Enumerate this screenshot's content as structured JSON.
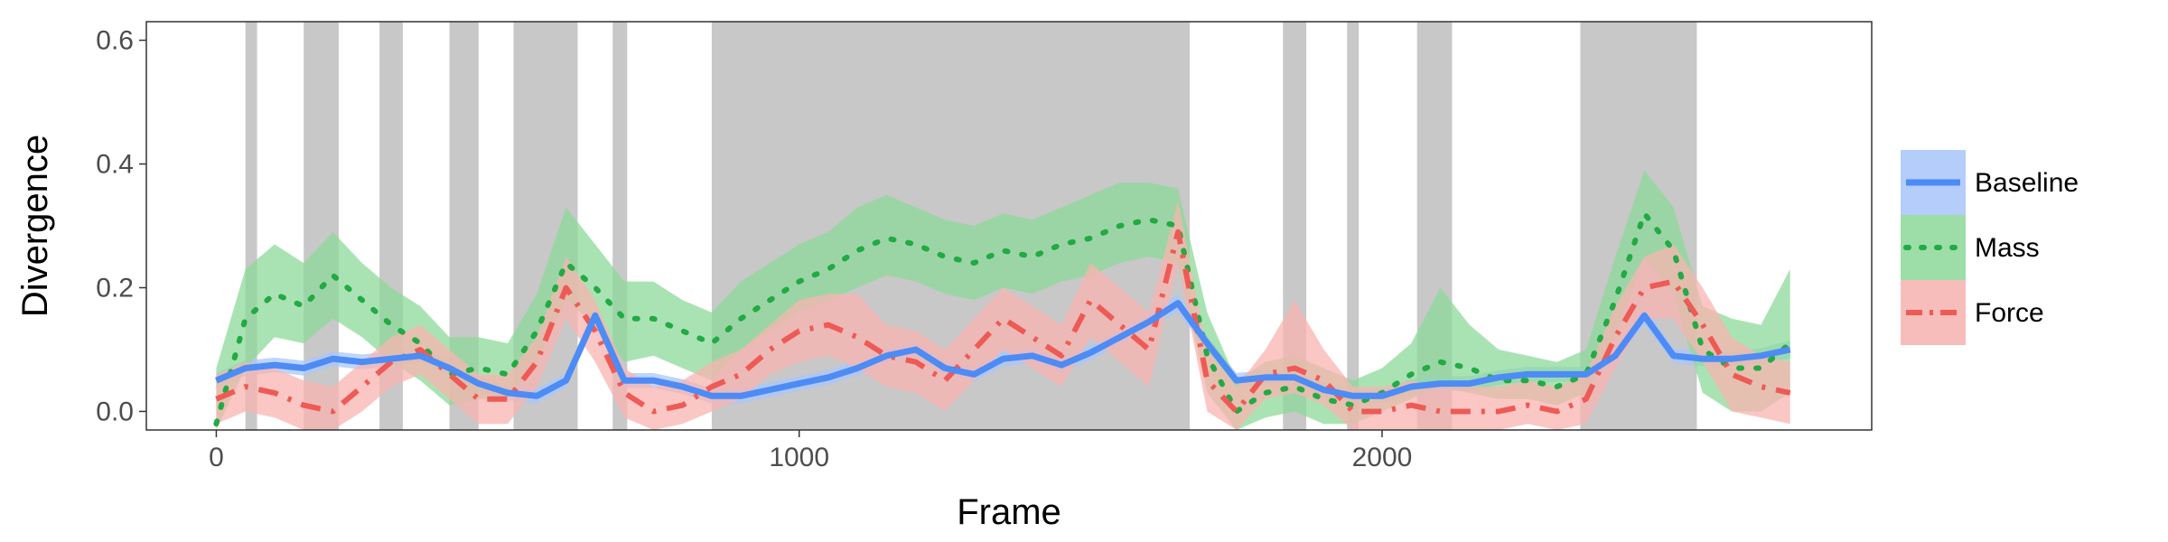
{
  "chart_data": {
    "type": "line",
    "xlabel": "Frame",
    "ylabel": "Divergence",
    "xlim": [
      -120,
      2840
    ],
    "ylim": [
      -0.03,
      0.63
    ],
    "xticks": [
      0,
      1000,
      2000
    ],
    "yticks": [
      0.0,
      0.2,
      0.4,
      0.6
    ],
    "xtick_labels": [
      "0",
      "1000",
      "2000"
    ],
    "ytick_labels": [
      "0.0",
      "0.2",
      "0.4",
      "0.6"
    ],
    "grid": false,
    "legend_position": "right",
    "shaded_regions": [
      [
        50,
        70
      ],
      [
        150,
        210
      ],
      [
        280,
        320
      ],
      [
        400,
        450
      ],
      [
        510,
        620
      ],
      [
        680,
        705
      ],
      [
        850,
        1670
      ],
      [
        1830,
        1870
      ],
      [
        1940,
        1960
      ],
      [
        2060,
        2120
      ],
      [
        2340,
        2540
      ]
    ],
    "series": [
      {
        "name": "Baseline",
        "color": "#4d8bf5",
        "band_color": "#a9c7fb",
        "linestyle": "solid",
        "x": [
          0,
          50,
          100,
          150,
          200,
          250,
          300,
          350,
          400,
          450,
          500,
          550,
          600,
          650,
          700,
          750,
          800,
          850,
          900,
          950,
          1000,
          1050,
          1100,
          1150,
          1200,
          1250,
          1300,
          1350,
          1400,
          1450,
          1500,
          1550,
          1600,
          1650,
          1700,
          1750,
          1800,
          1850,
          1900,
          1950,
          2000,
          2050,
          2100,
          2150,
          2200,
          2250,
          2300,
          2350,
          2400,
          2450,
          2500,
          2550,
          2600,
          2650,
          2700
        ],
        "y": [
          0.05,
          0.07,
          0.075,
          0.07,
          0.085,
          0.08,
          0.085,
          0.09,
          0.07,
          0.045,
          0.03,
          0.025,
          0.05,
          0.155,
          0.05,
          0.05,
          0.04,
          0.025,
          0.025,
          0.035,
          0.045,
          0.055,
          0.07,
          0.09,
          0.1,
          0.07,
          0.06,
          0.085,
          0.09,
          0.075,
          0.095,
          0.12,
          0.145,
          0.175,
          0.11,
          0.05,
          0.055,
          0.055,
          0.035,
          0.025,
          0.025,
          0.04,
          0.045,
          0.045,
          0.055,
          0.06,
          0.06,
          0.06,
          0.09,
          0.155,
          0.09,
          0.085,
          0.085,
          0.09,
          0.1
        ],
        "lower": [
          0.038,
          0.058,
          0.063,
          0.058,
          0.073,
          0.068,
          0.073,
          0.078,
          0.058,
          0.033,
          0.018,
          0.013,
          0.038,
          0.14,
          0.038,
          0.038,
          0.028,
          0.013,
          0.013,
          0.023,
          0.033,
          0.043,
          0.058,
          0.078,
          0.088,
          0.058,
          0.048,
          0.073,
          0.078,
          0.063,
          0.083,
          0.108,
          0.133,
          0.16,
          0.098,
          0.038,
          0.043,
          0.043,
          0.023,
          0.013,
          0.013,
          0.028,
          0.033,
          0.033,
          0.043,
          0.048,
          0.048,
          0.048,
          0.078,
          0.14,
          0.078,
          0.073,
          0.073,
          0.078,
          0.085
        ],
        "upper": [
          0.062,
          0.082,
          0.087,
          0.082,
          0.097,
          0.092,
          0.097,
          0.102,
          0.082,
          0.057,
          0.042,
          0.037,
          0.062,
          0.17,
          0.062,
          0.062,
          0.052,
          0.037,
          0.037,
          0.047,
          0.057,
          0.067,
          0.082,
          0.102,
          0.112,
          0.082,
          0.072,
          0.097,
          0.102,
          0.087,
          0.107,
          0.132,
          0.157,
          0.19,
          0.122,
          0.062,
          0.067,
          0.067,
          0.047,
          0.037,
          0.037,
          0.052,
          0.057,
          0.057,
          0.067,
          0.072,
          0.072,
          0.072,
          0.102,
          0.17,
          0.102,
          0.097,
          0.097,
          0.102,
          0.115
        ]
      },
      {
        "name": "Mass",
        "color": "#22aa44",
        "band_color": "#8ed99a",
        "linestyle": "dotted",
        "x": [
          0,
          50,
          100,
          150,
          200,
          250,
          300,
          350,
          400,
          450,
          500,
          550,
          600,
          650,
          700,
          750,
          800,
          850,
          900,
          950,
          1000,
          1050,
          1100,
          1150,
          1200,
          1250,
          1300,
          1350,
          1400,
          1450,
          1500,
          1550,
          1600,
          1650,
          1700,
          1750,
          1800,
          1850,
          1900,
          1950,
          2000,
          2050,
          2100,
          2150,
          2200,
          2250,
          2300,
          2350,
          2400,
          2450,
          2500,
          2550,
          2600,
          2650,
          2700
        ],
        "y": [
          -0.02,
          0.15,
          0.19,
          0.17,
          0.22,
          0.18,
          0.14,
          0.11,
          0.06,
          0.07,
          0.06,
          0.13,
          0.24,
          0.2,
          0.15,
          0.15,
          0.13,
          0.11,
          0.15,
          0.18,
          0.21,
          0.23,
          0.26,
          0.28,
          0.27,
          0.25,
          0.24,
          0.26,
          0.25,
          0.27,
          0.28,
          0.3,
          0.31,
          0.3,
          0.09,
          0.0,
          0.03,
          0.04,
          0.02,
          0.01,
          0.03,
          0.06,
          0.08,
          0.07,
          0.05,
          0.05,
          0.04,
          0.06,
          0.18,
          0.32,
          0.26,
          0.1,
          0.07,
          0.07,
          0.11
        ],
        "lower": [
          -0.03,
          0.07,
          0.12,
          0.11,
          0.15,
          0.12,
          0.08,
          0.05,
          0.01,
          0.02,
          0.02,
          0.08,
          0.18,
          0.14,
          0.08,
          0.09,
          0.07,
          0.05,
          0.1,
          0.13,
          0.16,
          0.18,
          0.2,
          0.22,
          0.21,
          0.19,
          0.18,
          0.2,
          0.19,
          0.21,
          0.22,
          0.24,
          0.25,
          0.24,
          0.03,
          -0.03,
          -0.01,
          0.0,
          -0.02,
          -0.02,
          0.0,
          0.02,
          0.04,
          0.03,
          0.02,
          0.02,
          0.01,
          0.03,
          0.12,
          0.25,
          0.19,
          0.03,
          0.0,
          0.0,
          0.03
        ],
        "upper": [
          0.07,
          0.23,
          0.27,
          0.24,
          0.29,
          0.24,
          0.2,
          0.17,
          0.12,
          0.12,
          0.11,
          0.19,
          0.33,
          0.27,
          0.21,
          0.21,
          0.18,
          0.16,
          0.21,
          0.24,
          0.27,
          0.29,
          0.33,
          0.35,
          0.33,
          0.31,
          0.3,
          0.32,
          0.31,
          0.33,
          0.35,
          0.37,
          0.37,
          0.36,
          0.16,
          0.05,
          0.08,
          0.09,
          0.07,
          0.05,
          0.07,
          0.11,
          0.2,
          0.14,
          0.1,
          0.09,
          0.08,
          0.1,
          0.25,
          0.39,
          0.33,
          0.17,
          0.15,
          0.14,
          0.23
        ]
      },
      {
        "name": "Force",
        "color": "#ee5a55",
        "band_color": "#f8b4b0",
        "linestyle": "dashdot",
        "x": [
          0,
          50,
          100,
          150,
          200,
          250,
          300,
          350,
          400,
          450,
          500,
          550,
          600,
          650,
          700,
          750,
          800,
          850,
          900,
          950,
          1000,
          1050,
          1100,
          1150,
          1200,
          1250,
          1300,
          1350,
          1400,
          1450,
          1500,
          1550,
          1600,
          1650,
          1700,
          1750,
          1800,
          1850,
          1900,
          1950,
          2000,
          2050,
          2100,
          2150,
          2200,
          2250,
          2300,
          2350,
          2400,
          2450,
          2500,
          2550,
          2600,
          2650,
          2700
        ],
        "y": [
          0.02,
          0.04,
          0.03,
          0.01,
          0.0,
          0.04,
          0.08,
          0.1,
          0.06,
          0.02,
          0.02,
          0.08,
          0.2,
          0.13,
          0.03,
          0.0,
          0.01,
          0.04,
          0.06,
          0.1,
          0.13,
          0.14,
          0.12,
          0.09,
          0.08,
          0.05,
          0.1,
          0.15,
          0.12,
          0.09,
          0.18,
          0.14,
          0.1,
          0.29,
          0.05,
          0.0,
          0.06,
          0.07,
          0.05,
          0.0,
          0.0,
          0.01,
          0.0,
          0.0,
          0.0,
          0.01,
          0.0,
          0.02,
          0.12,
          0.2,
          0.21,
          0.14,
          0.06,
          0.04,
          0.03
        ],
        "lower": [
          -0.02,
          0.0,
          -0.01,
          -0.03,
          -0.03,
          0.0,
          0.04,
          0.06,
          0.02,
          -0.02,
          -0.02,
          0.04,
          0.15,
          0.08,
          -0.01,
          -0.03,
          -0.02,
          0.0,
          0.02,
          0.06,
          0.08,
          0.09,
          0.07,
          0.04,
          0.03,
          0.0,
          0.05,
          0.1,
          0.07,
          0.04,
          0.12,
          0.08,
          0.04,
          0.24,
          0.0,
          -0.03,
          0.02,
          0.03,
          0.01,
          -0.03,
          -0.03,
          -0.03,
          -0.03,
          -0.03,
          -0.03,
          -0.02,
          -0.03,
          -0.02,
          0.07,
          0.15,
          0.15,
          0.08,
          0.0,
          -0.01,
          -0.02
        ],
        "upper": [
          0.06,
          0.08,
          0.07,
          0.05,
          0.04,
          0.08,
          0.12,
          0.14,
          0.1,
          0.06,
          0.06,
          0.12,
          0.25,
          0.18,
          0.07,
          0.04,
          0.05,
          0.08,
          0.1,
          0.14,
          0.18,
          0.19,
          0.19,
          0.14,
          0.13,
          0.1,
          0.15,
          0.2,
          0.17,
          0.14,
          0.24,
          0.2,
          0.16,
          0.34,
          0.1,
          0.04,
          0.1,
          0.18,
          0.1,
          0.04,
          0.04,
          0.05,
          0.04,
          0.04,
          0.04,
          0.05,
          0.04,
          0.06,
          0.17,
          0.25,
          0.27,
          0.2,
          0.12,
          0.09,
          0.08
        ]
      }
    ]
  }
}
